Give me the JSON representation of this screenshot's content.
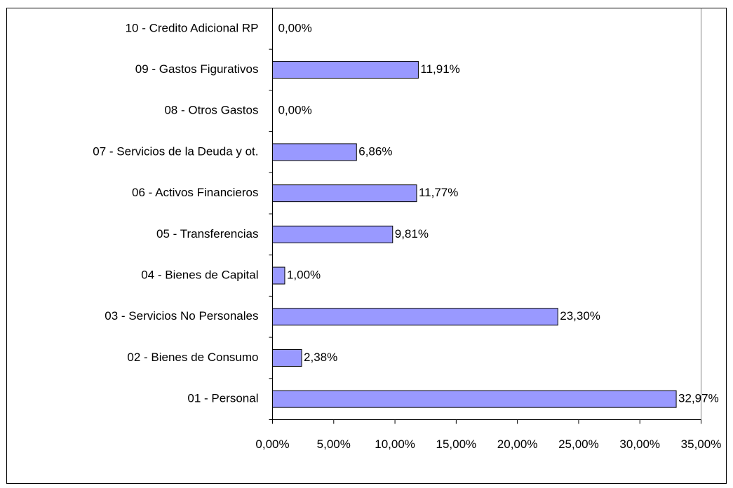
{
  "chart_data": {
    "type": "bar",
    "orientation": "horizontal",
    "categories": [
      "01 - Personal",
      "02 - Bienes de Consumo",
      "03 - Servicios No Personales",
      "04 - Bienes de Capital",
      "05 - Transferencias",
      "06 - Activos Financieros",
      "07 - Servicios de la Deuda y ot.",
      "08 - Otros Gastos",
      "09 - Gastos Figurativos",
      "10 - Credito Adicional RP"
    ],
    "values": [
      32.97,
      2.38,
      23.3,
      1.0,
      9.81,
      11.77,
      6.86,
      0.0,
      11.91,
      0.0
    ],
    "value_labels": [
      "32,97%",
      "2,38%",
      "23,30%",
      "1,00%",
      "9,81%",
      "11,77%",
      "6,86%",
      "0,00%",
      "11,91%",
      "0,00%"
    ],
    "color": "#9999ff",
    "xlim": [
      0,
      35
    ],
    "xticks": [
      {
        "value": 0,
        "label": "0,00%"
      },
      {
        "value": 5,
        "label": "5,00%"
      },
      {
        "value": 10,
        "label": "10,00%"
      },
      {
        "value": 15,
        "label": "15,00%"
      },
      {
        "value": 20,
        "label": "20,00%"
      },
      {
        "value": 25,
        "label": "25,00%"
      },
      {
        "value": 30,
        "label": "30,00%"
      },
      {
        "value": 35,
        "label": "35,00%"
      }
    ],
    "grid": false
  }
}
